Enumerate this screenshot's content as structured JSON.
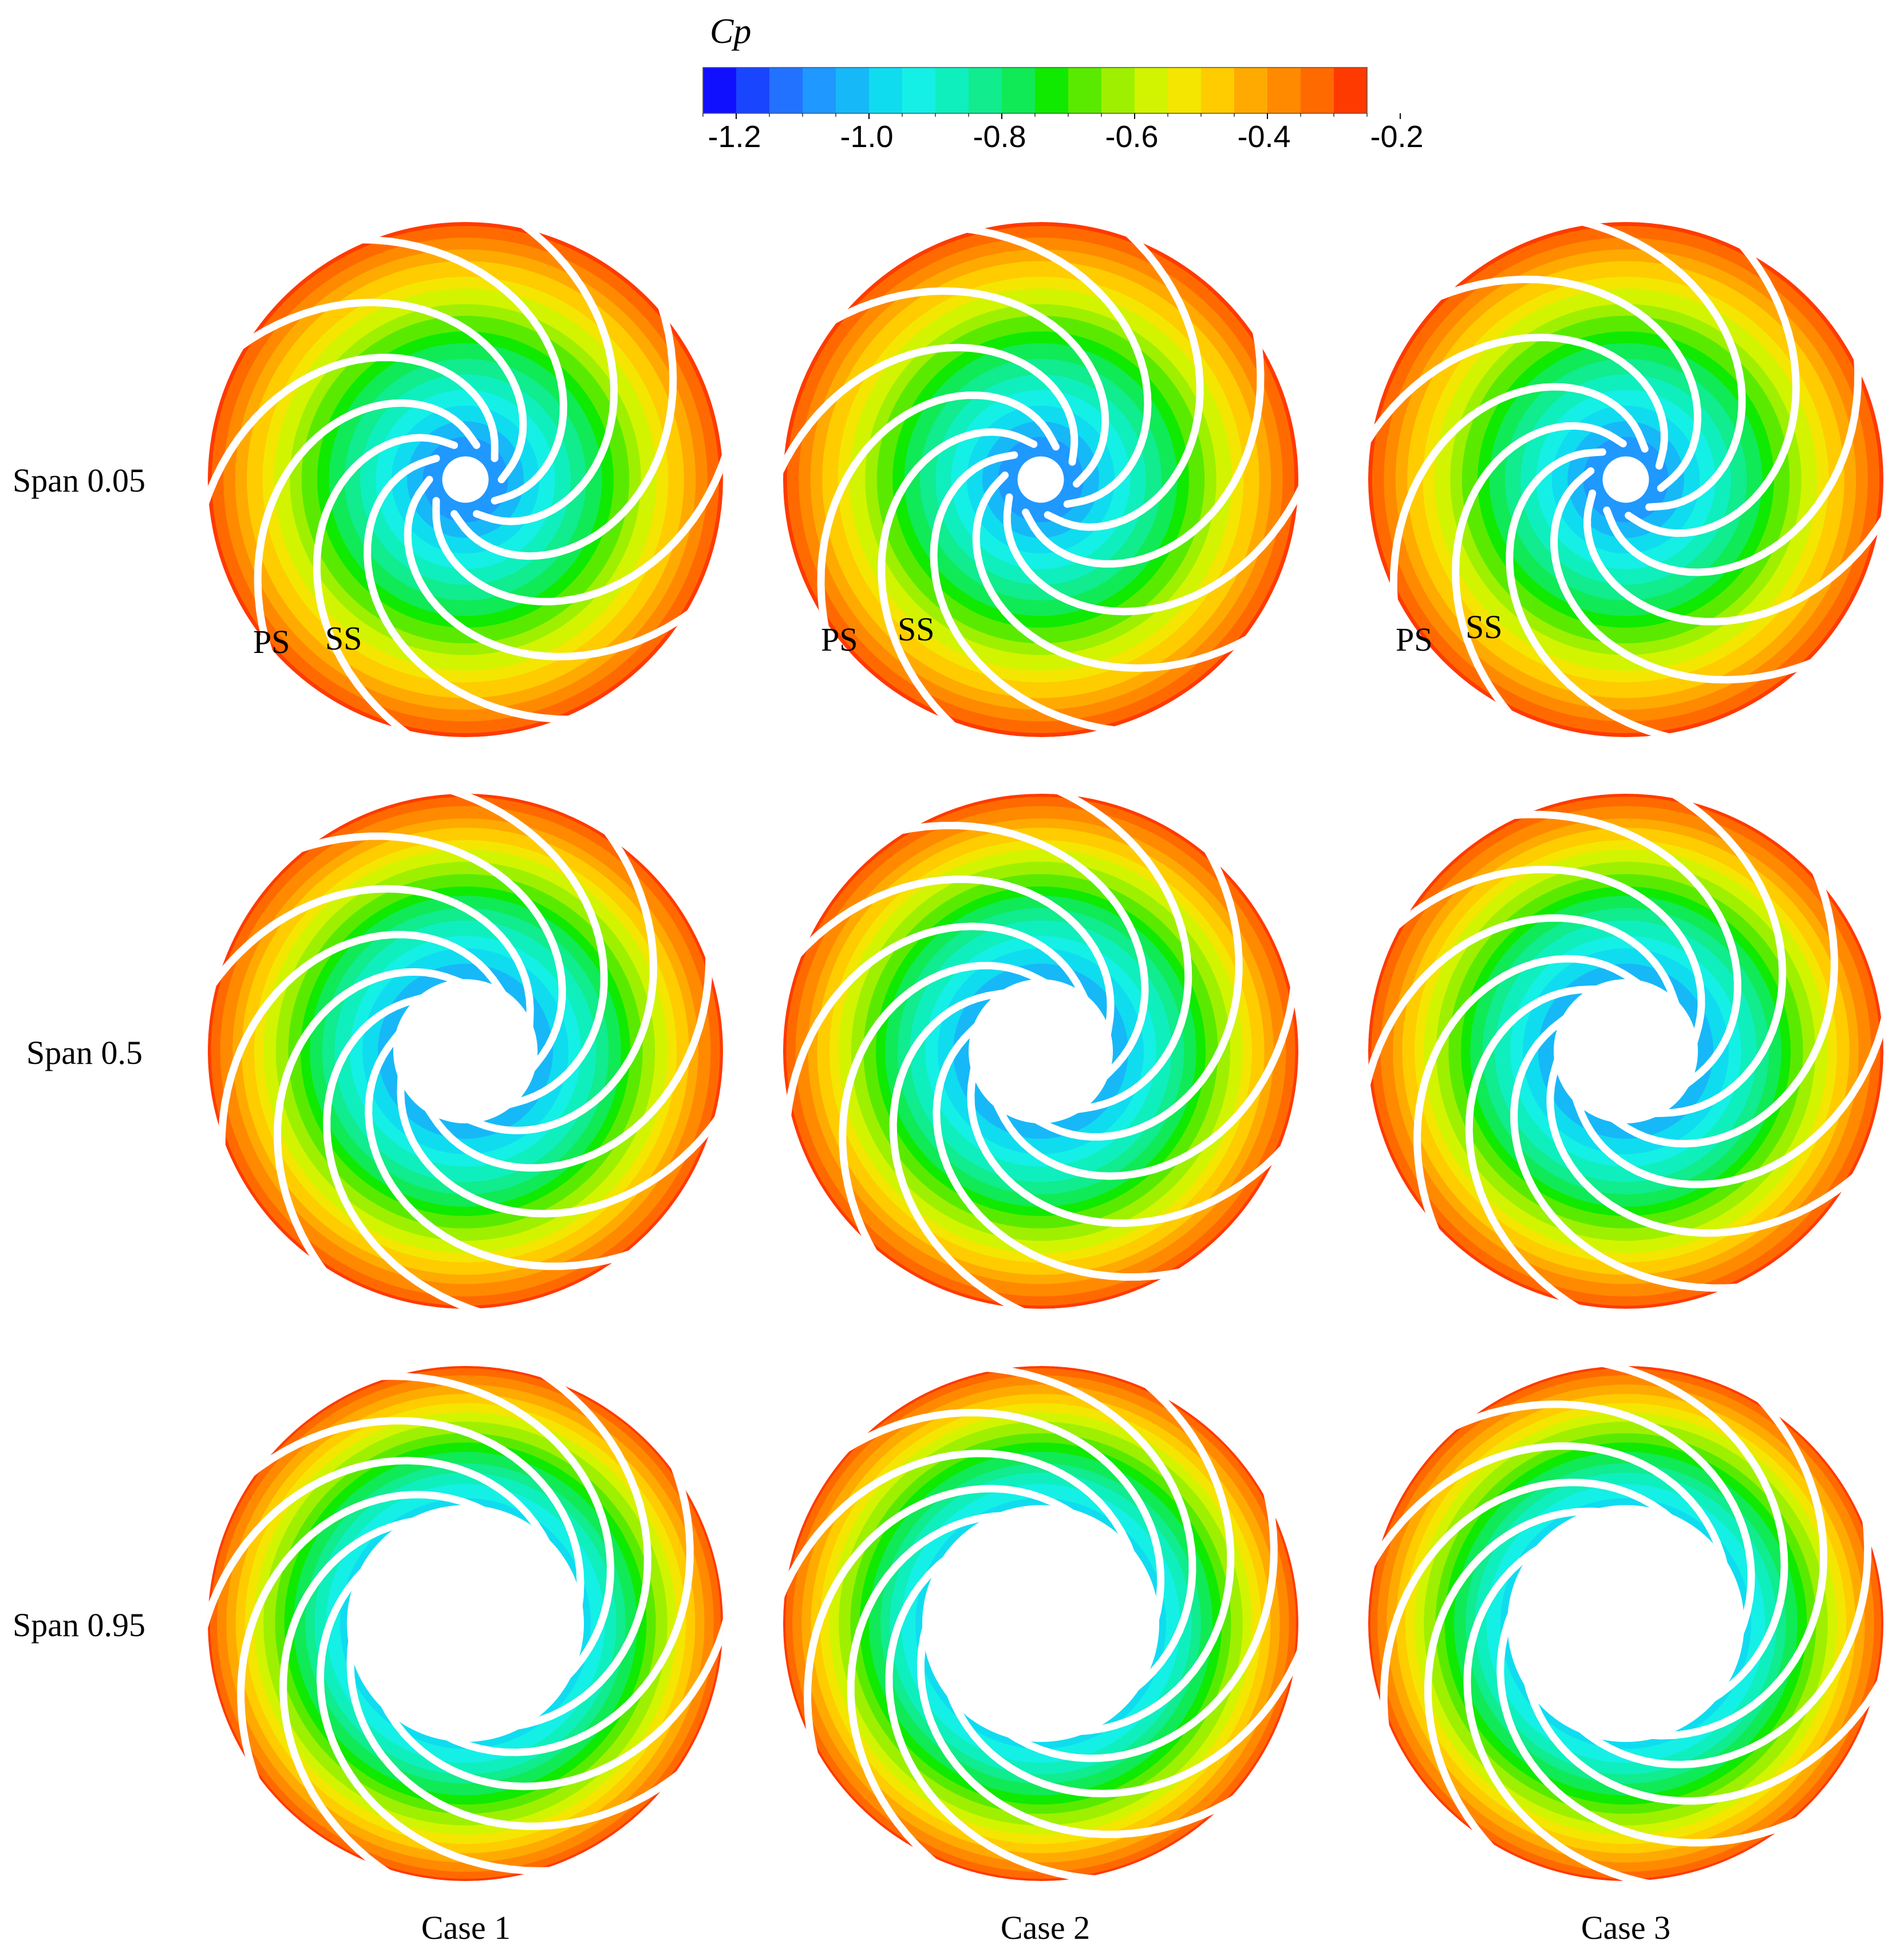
{
  "colorbar": {
    "title": "Cp",
    "min": -1.25,
    "max": -0.25,
    "levels": 20,
    "ticks": [
      "-1.2",
      "-1.0",
      "-0.8",
      "-0.6",
      "-0.4",
      "-0.2"
    ],
    "tick_values": [
      -1.2,
      -1.0,
      -0.8,
      -0.6,
      -0.4,
      -0.2
    ],
    "colors": [
      "#1010ff",
      "#1a45ff",
      "#2272ff",
      "#1f98ff",
      "#17b8f8",
      "#10dcf0",
      "#14f0e6",
      "#0fefbd",
      "#10ec8e",
      "#10ea56",
      "#0fea00",
      "#5aea00",
      "#9ef000",
      "#d2f400",
      "#f4e600",
      "#ffcc00",
      "#ffaa00",
      "#ff8a00",
      "#ff6a00",
      "#ff3a00"
    ]
  },
  "rows": [
    {
      "label": "Span 0.05",
      "hub_fraction": 0.09,
      "inner_cp": -1.1
    },
    {
      "label": "Span 0.5",
      "hub_fraction": 0.28,
      "inner_cp": -1.05
    },
    {
      "label": "Span 0.95",
      "hub_fraction": 0.46,
      "inner_cp": -0.98
    }
  ],
  "columns": [
    {
      "label": "Case 1"
    },
    {
      "label": "Case 2"
    },
    {
      "label": "Case 3"
    }
  ],
  "annotations": {
    "ps": "PS",
    "ss": "SS"
  },
  "impeller": {
    "blade_count": 10,
    "blade_wrap_deg": 150
  }
}
